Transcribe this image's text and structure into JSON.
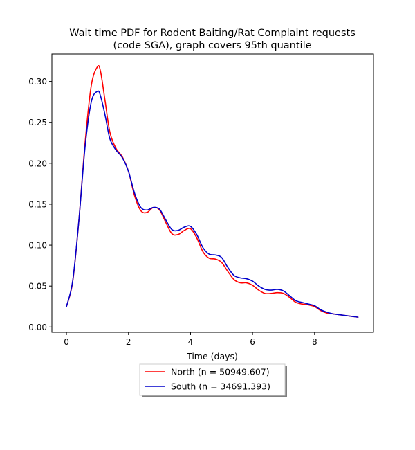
{
  "chart_data": {
    "type": "line",
    "title": [
      "Wait time PDF for Rodent Baiting/Rat Complaint  requests",
      "(code SGA), graph covers 95th quantile"
    ],
    "xlabel": "Time (days)",
    "ylabel": "",
    "xlim": [
      -0.47,
      9.9
    ],
    "ylim": [
      -0.0065,
      0.3335
    ],
    "xticks": [
      0,
      2,
      4,
      6,
      8
    ],
    "xtick_labels": [
      "0",
      "2",
      "4",
      "6",
      "8"
    ],
    "yticks": [
      0.0,
      0.05,
      0.1,
      0.15,
      0.2,
      0.25,
      0.3
    ],
    "ytick_labels": [
      "0.00",
      "0.05",
      "0.10",
      "0.15",
      "0.20",
      "0.25",
      "0.30"
    ],
    "grid": false,
    "legend_position": "bottom-center, below axes",
    "series": [
      {
        "name": "North (n = 50949.607)",
        "color": "#ff0000",
        "x": [
          0,
          0.2,
          0.4,
          0.6,
          0.8,
          1.0,
          1.1,
          1.25,
          1.4,
          1.6,
          1.8,
          2.0,
          2.2,
          2.4,
          2.6,
          2.8,
          3.0,
          3.2,
          3.4,
          3.6,
          3.8,
          4.0,
          4.2,
          4.4,
          4.6,
          4.8,
          5.0,
          5.2,
          5.4,
          5.6,
          5.8,
          6.0,
          6.2,
          6.4,
          6.6,
          6.8,
          7.0,
          7.2,
          7.4,
          7.6,
          7.8,
          8.0,
          8.2,
          8.4,
          8.6,
          8.8,
          9.0,
          9.2,
          9.4
        ],
        "y": [
          0.025,
          0.055,
          0.13,
          0.225,
          0.295,
          0.318,
          0.312,
          0.275,
          0.238,
          0.218,
          0.208,
          0.19,
          0.16,
          0.142,
          0.14,
          0.146,
          0.143,
          0.128,
          0.114,
          0.113,
          0.118,
          0.12,
          0.109,
          0.092,
          0.084,
          0.083,
          0.079,
          0.068,
          0.058,
          0.054,
          0.054,
          0.051,
          0.045,
          0.041,
          0.041,
          0.042,
          0.041,
          0.036,
          0.03,
          0.028,
          0.027,
          0.025,
          0.02,
          0.017,
          0.016,
          0.015,
          0.014,
          0.013,
          0.012
        ]
      },
      {
        "name": "South (n = 34691.393)",
        "color": "#0000cc",
        "x": [
          0,
          0.2,
          0.4,
          0.6,
          0.8,
          1.0,
          1.1,
          1.25,
          1.4,
          1.6,
          1.8,
          2.0,
          2.2,
          2.4,
          2.6,
          2.8,
          3.0,
          3.2,
          3.4,
          3.6,
          3.8,
          4.0,
          4.2,
          4.4,
          4.6,
          4.8,
          5.0,
          5.2,
          5.4,
          5.6,
          5.8,
          6.0,
          6.2,
          6.4,
          6.6,
          6.8,
          7.0,
          7.2,
          7.4,
          7.6,
          7.8,
          8.0,
          8.2,
          8.4,
          8.6,
          8.8,
          9.0,
          9.2,
          9.4
        ],
        "y": [
          0.025,
          0.056,
          0.13,
          0.22,
          0.275,
          0.288,
          0.282,
          0.258,
          0.23,
          0.216,
          0.207,
          0.19,
          0.163,
          0.146,
          0.143,
          0.146,
          0.144,
          0.131,
          0.119,
          0.118,
          0.122,
          0.123,
          0.113,
          0.097,
          0.089,
          0.088,
          0.085,
          0.073,
          0.063,
          0.06,
          0.059,
          0.056,
          0.05,
          0.046,
          0.045,
          0.046,
          0.044,
          0.038,
          0.032,
          0.03,
          0.028,
          0.026,
          0.021,
          0.018,
          0.016,
          0.015,
          0.014,
          0.013,
          0.012
        ]
      }
    ]
  }
}
